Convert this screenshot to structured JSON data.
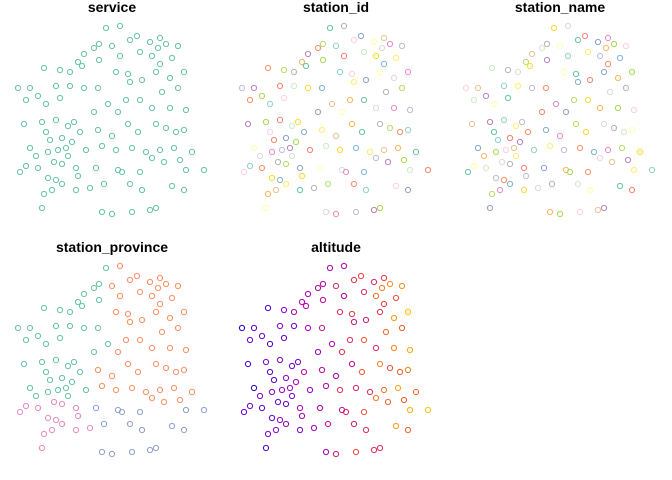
{
  "chart_data": [
    {
      "type": "scatter",
      "title": "service",
      "values": [
        "single-value",
        "single-value"
      ]
    },
    {
      "type": "scatter",
      "title": "station_id",
      "values": "categorical"
    },
    {
      "type": "scatter",
      "title": "station_name",
      "values": "categorical"
    },
    {
      "type": "scatter",
      "title": "station_province",
      "values": "categorical (4 classes)"
    },
    {
      "type": "scatter",
      "title": "altitude",
      "values": "continuous (color ramp blue → purple → red → yellow)"
    }
  ],
  "colors": {
    "service": "#66c2a5",
    "province": [
      "#66c2a5",
      "#fc8d62",
      "#e78ac3",
      "#8da0cb"
    ],
    "altitude_ramp": [
      "#0000cd",
      "#4b00d8",
      "#8a00d4",
      "#c1009c",
      "#ee3c3c",
      "#ff8c1a",
      "#ffe000"
    ],
    "station_palette": [
      "#66c2a5",
      "#fc8d62",
      "#8da0cb",
      "#e78ac3",
      "#a6d854",
      "#ffd92f",
      "#e5c494",
      "#b3b3b3",
      "#8dd3c7",
      "#ffffb3",
      "#bebada",
      "#fb8072",
      "#80b1d3",
      "#fdb462",
      "#b3de69",
      "#fccde5",
      "#d9d9d9",
      "#bc80bd",
      "#ccebc5",
      "#ffed6f"
    ]
  }
}
